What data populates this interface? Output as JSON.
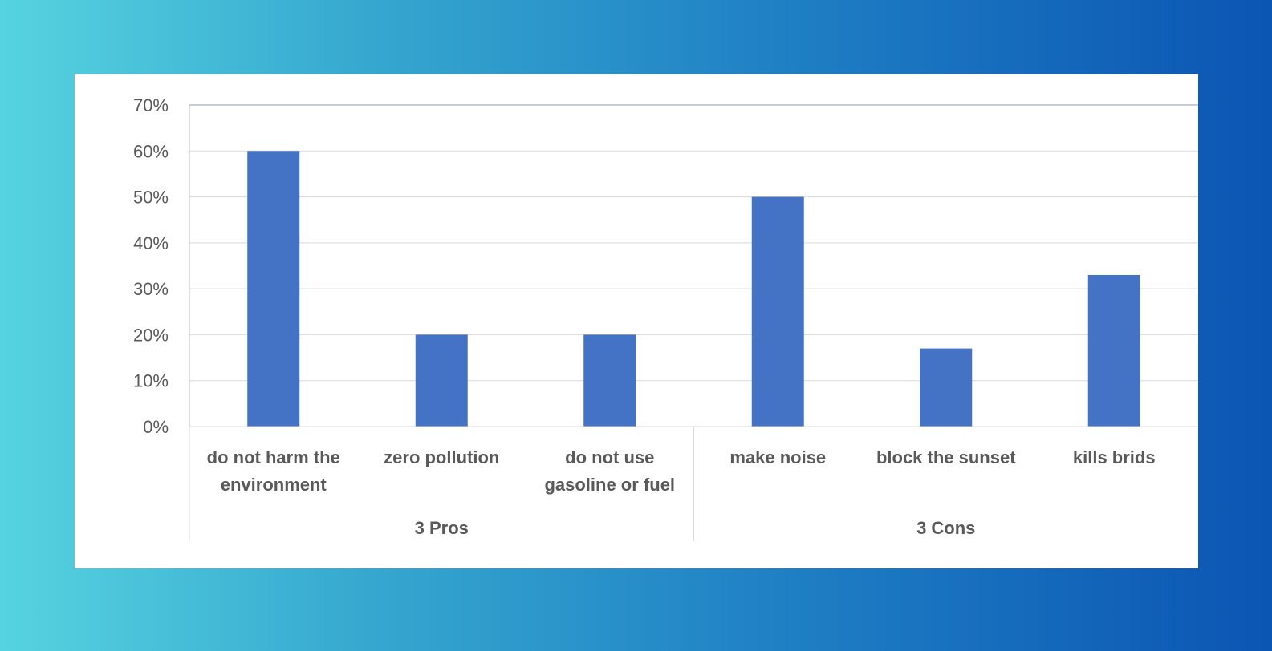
{
  "chart_data": {
    "type": "bar",
    "title": "",
    "xlabel": "",
    "ylabel": "",
    "ylim": [
      0,
      0.7
    ],
    "yticks": [
      0,
      0.1,
      0.2,
      0.3,
      0.4,
      0.5,
      0.6,
      0.7
    ],
    "ytick_labels": [
      "0%",
      "10%",
      "20%",
      "30%",
      "40%",
      "50%",
      "60%",
      "70%"
    ],
    "grid": true,
    "legend": "none",
    "bar_color": "#4472c4",
    "categories": [
      "do not harm the environment",
      "zero pollution",
      "do not use gasoline or fuel",
      "make noise",
      "block the sunset",
      "kills brids"
    ],
    "category_lines": [
      [
        "do not harm the",
        "environment"
      ],
      [
        "zero pollution"
      ],
      [
        "do not use",
        "gasoline or fuel"
      ],
      [
        "make noise"
      ],
      [
        "block the sunset"
      ],
      [
        "kills brids"
      ]
    ],
    "groups": [
      {
        "label": "3 Pros",
        "categories": [
          0,
          1,
          2
        ]
      },
      {
        "label": "3 Cons",
        "categories": [
          3,
          4,
          5
        ]
      }
    ],
    "values": [
      0.6,
      0.2,
      0.2,
      0.5,
      0.17,
      0.33
    ]
  }
}
